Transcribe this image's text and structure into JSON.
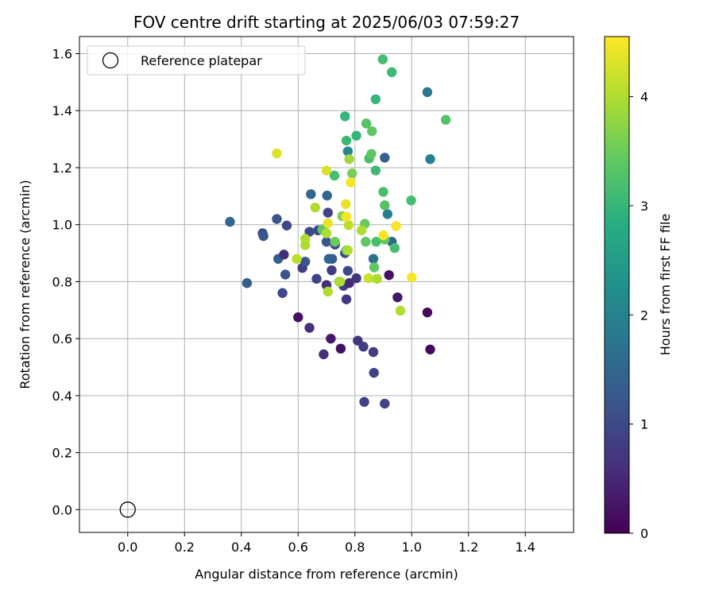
{
  "chart_data": {
    "type": "scatter",
    "title": "FOV centre drift starting at 2025/06/03 07:59:27",
    "xlabel": "Angular distance from reference (arcmin)",
    "ylabel": "Rotation from reference (arcmin)",
    "xlim": [
      -0.17,
      1.57
    ],
    "ylim": [
      -0.08,
      1.66
    ],
    "xticks": [
      0.0,
      0.2,
      0.4,
      0.6,
      0.8,
      1.0,
      1.2,
      1.4
    ],
    "xtick_labels": [
      "0.0",
      "0.2",
      "0.4",
      "0.6",
      "0.8",
      "1.0",
      "1.2",
      "1.4"
    ],
    "yticks": [
      0.0,
      0.2,
      0.4,
      0.6,
      0.8,
      1.0,
      1.2,
      1.4,
      1.6
    ],
    "ytick_labels": [
      "0.0",
      "0.2",
      "0.4",
      "0.6",
      "0.8",
      "1.0",
      "1.2",
      "1.4",
      "1.6"
    ],
    "grid": true,
    "legend": {
      "placement": "top-left",
      "entries": [
        {
          "label": "Reference platepar",
          "marker": "open-circle"
        }
      ]
    },
    "reference_point": {
      "x": 0.0,
      "y": 0.0
    },
    "colorbar": {
      "label": "Hours from first FF file",
      "colormap": "viridis",
      "range": [
        0,
        4.55
      ],
      "ticks": [
        0,
        1,
        2,
        3,
        4
      ],
      "tick_labels": [
        "0",
        "1",
        "2",
        "3",
        "4"
      ]
    },
    "points": [
      {
        "x": 0.36,
        "y": 1.01,
        "c": 1.5
      },
      {
        "x": 0.42,
        "y": 0.795,
        "c": 1.3
      },
      {
        "x": 0.475,
        "y": 0.97,
        "c": 1.1
      },
      {
        "x": 0.478,
        "y": 0.96,
        "c": 1.2
      },
      {
        "x": 0.525,
        "y": 1.02,
        "c": 1.2
      },
      {
        "x": 0.53,
        "y": 0.88,
        "c": 1.4
      },
      {
        "x": 0.545,
        "y": 0.76,
        "c": 1.0
      },
      {
        "x": 0.55,
        "y": 0.895,
        "c": 0.6
      },
      {
        "x": 0.555,
        "y": 0.825,
        "c": 1.2
      },
      {
        "x": 0.56,
        "y": 0.997,
        "c": 1.0
      },
      {
        "x": 0.6,
        "y": 0.675,
        "c": 0.2
      },
      {
        "x": 0.615,
        "y": 0.848,
        "c": 0.8
      },
      {
        "x": 0.625,
        "y": 0.87,
        "c": 1.2
      },
      {
        "x": 0.64,
        "y": 0.975,
        "c": 1.0
      },
      {
        "x": 0.64,
        "y": 0.638,
        "c": 0.6
      },
      {
        "x": 0.645,
        "y": 1.107,
        "c": 1.5
      },
      {
        "x": 0.665,
        "y": 0.81,
        "c": 0.9
      },
      {
        "x": 0.67,
        "y": 0.98,
        "c": 1.0
      },
      {
        "x": 0.69,
        "y": 0.545,
        "c": 0.6
      },
      {
        "x": 0.7,
        "y": 0.94,
        "c": 1.2
      },
      {
        "x": 0.7,
        "y": 0.788,
        "c": 0.6
      },
      {
        "x": 0.702,
        "y": 1.102,
        "c": 1.5
      },
      {
        "x": 0.705,
        "y": 1.042,
        "c": 0.9
      },
      {
        "x": 0.708,
        "y": 0.88,
        "c": 1.5
      },
      {
        "x": 0.715,
        "y": 0.6,
        "c": 0.3
      },
      {
        "x": 0.718,
        "y": 0.84,
        "c": 0.8
      },
      {
        "x": 0.72,
        "y": 0.88,
        "c": 1.4
      },
      {
        "x": 0.73,
        "y": 0.93,
        "c": 0.9
      },
      {
        "x": 0.75,
        "y": 0.565,
        "c": 0.2
      },
      {
        "x": 0.76,
        "y": 0.785,
        "c": 0.8
      },
      {
        "x": 0.765,
        "y": 0.9,
        "c": 1.0
      },
      {
        "x": 0.77,
        "y": 0.738,
        "c": 0.7
      },
      {
        "x": 0.775,
        "y": 0.838,
        "c": 1.0
      },
      {
        "x": 0.78,
        "y": 0.795,
        "c": 0.5
      },
      {
        "x": 0.805,
        "y": 0.812,
        "c": 0.7
      },
      {
        "x": 0.81,
        "y": 0.593,
        "c": 0.7
      },
      {
        "x": 0.83,
        "y": 0.572,
        "c": 0.8
      },
      {
        "x": 0.833,
        "y": 0.378,
        "c": 0.9
      },
      {
        "x": 0.865,
        "y": 0.553,
        "c": 0.8
      },
      {
        "x": 0.867,
        "y": 0.48,
        "c": 0.9
      },
      {
        "x": 0.905,
        "y": 0.372,
        "c": 0.9
      },
      {
        "x": 0.92,
        "y": 0.823,
        "c": 0.2
      },
      {
        "x": 0.95,
        "y": 0.745,
        "c": 0.3
      },
      {
        "x": 1.055,
        "y": 0.692,
        "c": 0.1
      },
      {
        "x": 1.065,
        "y": 0.562,
        "c": 0.1
      },
      {
        "x": 1.055,
        "y": 1.465,
        "c": 1.8
      },
      {
        "x": 1.065,
        "y": 1.23,
        "c": 2.0
      },
      {
        "x": 0.905,
        "y": 1.235,
        "c": 1.4
      },
      {
        "x": 0.915,
        "y": 1.037,
        "c": 2.0
      },
      {
        "x": 0.93,
        "y": 0.94,
        "c": 1.5
      },
      {
        "x": 0.865,
        "y": 0.88,
        "c": 1.7
      },
      {
        "x": 0.775,
        "y": 1.257,
        "c": 2.1
      },
      {
        "x": 0.765,
        "y": 1.38,
        "c": 3.0
      },
      {
        "x": 0.77,
        "y": 1.295,
        "c": 3.1
      },
      {
        "x": 0.805,
        "y": 1.312,
        "c": 3.0
      },
      {
        "x": 0.84,
        "y": 1.355,
        "c": 3.3
      },
      {
        "x": 0.85,
        "y": 1.232,
        "c": 3.2
      },
      {
        "x": 0.858,
        "y": 1.248,
        "c": 3.4
      },
      {
        "x": 0.86,
        "y": 1.328,
        "c": 3.4
      },
      {
        "x": 0.873,
        "y": 1.44,
        "c": 3.0
      },
      {
        "x": 0.898,
        "y": 1.58,
        "c": 3.2
      },
      {
        "x": 0.93,
        "y": 1.535,
        "c": 3.1
      },
      {
        "x": 0.873,
        "y": 1.19,
        "c": 3.1
      },
      {
        "x": 0.9,
        "y": 1.115,
        "c": 3.2
      },
      {
        "x": 0.905,
        "y": 1.068,
        "c": 3.3
      },
      {
        "x": 0.998,
        "y": 1.085,
        "c": 3.2
      },
      {
        "x": 1.12,
        "y": 1.368,
        "c": 3.3
      },
      {
        "x": 0.728,
        "y": 1.172,
        "c": 3.2
      },
      {
        "x": 0.79,
        "y": 1.18,
        "c": 3.6
      },
      {
        "x": 0.835,
        "y": 1.003,
        "c": 3.5
      },
      {
        "x": 0.838,
        "y": 0.94,
        "c": 3.4
      },
      {
        "x": 0.875,
        "y": 0.94,
        "c": 3.2
      },
      {
        "x": 0.905,
        "y": 0.948,
        "c": 3.4
      },
      {
        "x": 0.94,
        "y": 0.918,
        "c": 3.2
      },
      {
        "x": 0.868,
        "y": 0.85,
        "c": 3.4
      },
      {
        "x": 0.685,
        "y": 0.982,
        "c": 3.4
      },
      {
        "x": 0.73,
        "y": 0.94,
        "c": 3.5
      },
      {
        "x": 0.755,
        "y": 1.03,
        "c": 3.7
      },
      {
        "x": 0.745,
        "y": 0.8,
        "c": 3.5
      },
      {
        "x": 0.77,
        "y": 0.91,
        "c": 3.4
      },
      {
        "x": 0.525,
        "y": 1.25,
        "c": 4.3
      },
      {
        "x": 0.595,
        "y": 0.88,
        "c": 4.1
      },
      {
        "x": 0.625,
        "y": 0.95,
        "c": 4.0
      },
      {
        "x": 0.625,
        "y": 0.928,
        "c": 4.0
      },
      {
        "x": 0.66,
        "y": 1.06,
        "c": 4.0
      },
      {
        "x": 0.7,
        "y": 0.97,
        "c": 4.0
      },
      {
        "x": 0.705,
        "y": 0.765,
        "c": 4.0
      },
      {
        "x": 0.748,
        "y": 0.8,
        "c": 4.0
      },
      {
        "x": 0.775,
        "y": 0.91,
        "c": 4.0
      },
      {
        "x": 0.778,
        "y": 0.998,
        "c": 4.1
      },
      {
        "x": 0.78,
        "y": 1.23,
        "c": 3.9
      },
      {
        "x": 0.823,
        "y": 0.98,
        "c": 4.0
      },
      {
        "x": 0.848,
        "y": 0.812,
        "c": 4.2
      },
      {
        "x": 0.878,
        "y": 0.81,
        "c": 4.0
      },
      {
        "x": 0.96,
        "y": 0.698,
        "c": 4.0
      },
      {
        "x": 0.7,
        "y": 1.19,
        "c": 4.3
      },
      {
        "x": 0.705,
        "y": 1.005,
        "c": 4.4
      },
      {
        "x": 0.768,
        "y": 1.072,
        "c": 4.4
      },
      {
        "x": 0.77,
        "y": 1.028,
        "c": 4.5
      },
      {
        "x": 0.785,
        "y": 1.148,
        "c": 4.5
      },
      {
        "x": 0.9,
        "y": 0.963,
        "c": 4.5
      },
      {
        "x": 0.945,
        "y": 0.995,
        "c": 4.5
      },
      {
        "x": 1.0,
        "y": 0.815,
        "c": 4.5
      }
    ]
  }
}
